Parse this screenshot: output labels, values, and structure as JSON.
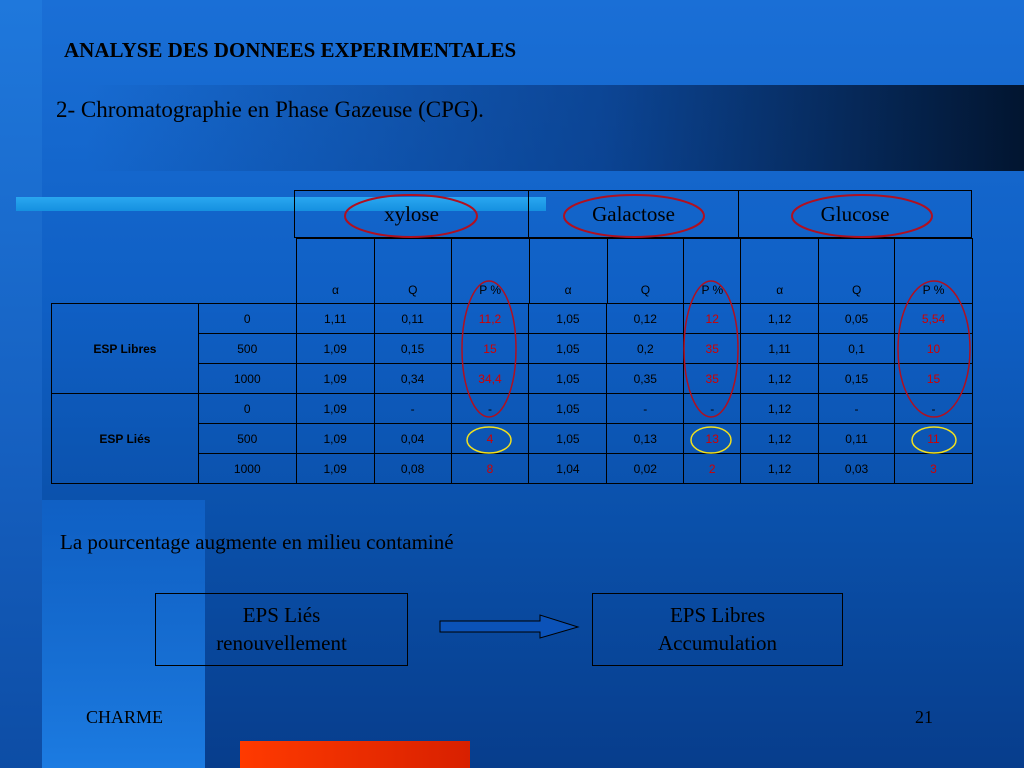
{
  "title": "ANALYSE DES DONNEES EXPERIMENTALES",
  "subtitle": "2- Chromatographie en Phase Gazeuse (CPG).",
  "sugars": [
    "xylose",
    "Galactose",
    "Glucose"
  ],
  "columns": [
    "α",
    "Q",
    "P %",
    "α",
    "Q",
    "P %",
    "α",
    "Q",
    "P %"
  ],
  "groups": [
    {
      "label": "ESP Libres",
      "rows": [
        {
          "dose": "0",
          "cells": [
            "1,11",
            "0,11",
            "11,2",
            "1,05",
            "0,12",
            "12",
            "1,12",
            "0,05",
            "5,54"
          ]
        },
        {
          "dose": "500",
          "cells": [
            "1,09",
            "0,15",
            "15",
            "1,05",
            "0,2",
            "35",
            "1,11",
            "0,1",
            "10"
          ]
        },
        {
          "dose": "1000",
          "cells": [
            "1,09",
            "0,34",
            "34,4",
            "1,05",
            "0,35",
            "35",
            "1,12",
            "0,15",
            "15"
          ]
        }
      ]
    },
    {
      "label": "ESP Liés",
      "rows": [
        {
          "dose": "0",
          "cells": [
            "1,09",
            "-",
            "-",
            "1,05",
            "-",
            "-",
            "1,12",
            "-",
            "-"
          ]
        },
        {
          "dose": "500",
          "cells": [
            "1,09",
            "0,04",
            "4",
            "1,05",
            "0,13",
            "13",
            "1,12",
            "0,11",
            "11"
          ]
        },
        {
          "dose": "1000",
          "cells": [
            "1,09",
            "0,08",
            "8",
            "1,04",
            "0,02",
            "2",
            "1,12",
            "0,03",
            "3"
          ]
        }
      ]
    }
  ],
  "conclusion": "La pourcentage augmente en milieu contaminé",
  "box_left": {
    "line1": "EPS Liés",
    "line2": "renouvellement"
  },
  "box_right": {
    "line1": "EPS Libres",
    "line2": "Accumulation"
  },
  "footer_left": "CHARME",
  "page_number": "21",
  "colors": {
    "highlight_red": "#d00000",
    "ellipse_red": "#b01020",
    "ellipse_yellow": "#f0e020"
  }
}
